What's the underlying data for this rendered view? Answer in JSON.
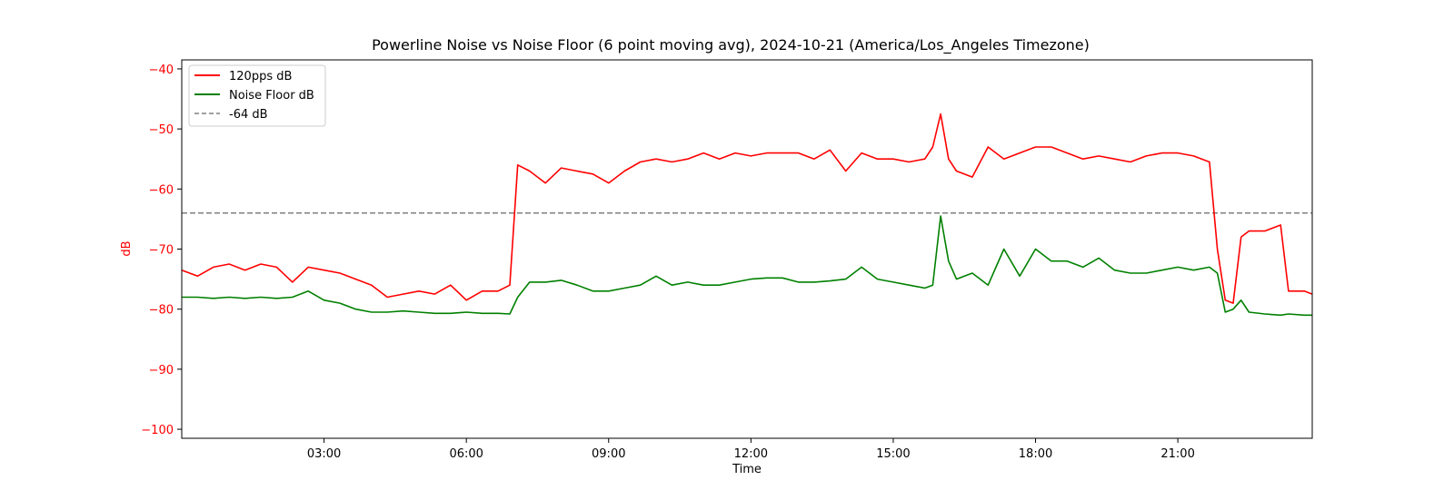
{
  "chart_data": {
    "type": "line",
    "title": "Powerline Noise vs Noise Floor (6 point moving avg), 2024-10-21 (America/Los_Angeles Timezone)",
    "xlabel": "Time",
    "ylabel": "dB",
    "xlim": [
      "00:00",
      "23:50"
    ],
    "ylim": [
      -101.5,
      -38.5
    ],
    "x_ticks": [
      "03:00",
      "06:00",
      "09:00",
      "12:00",
      "15:00",
      "18:00",
      "21:00"
    ],
    "y_ticks": [
      -40,
      -50,
      -60,
      -70,
      -80,
      -90,
      -100
    ],
    "grid": false,
    "legend_position": "top-left",
    "colors": {
      "pps": "#ff0000",
      "noise_floor": "#008000",
      "threshold": "#808080",
      "y_axis_text": "#ff0000"
    },
    "series": [
      {
        "name": "120pps dB",
        "color": "#ff0000",
        "x": [
          "00:00",
          "00:20",
          "00:40",
          "01:00",
          "01:20",
          "01:40",
          "02:00",
          "02:20",
          "02:40",
          "03:00",
          "03:20",
          "03:40",
          "04:00",
          "04:20",
          "04:40",
          "05:00",
          "05:20",
          "05:40",
          "06:00",
          "06:20",
          "06:40",
          "06:55",
          "07:05",
          "07:20",
          "07:40",
          "08:00",
          "08:20",
          "08:40",
          "09:00",
          "09:20",
          "09:40",
          "10:00",
          "10:20",
          "10:40",
          "11:00",
          "11:20",
          "11:40",
          "12:00",
          "12:20",
          "12:40",
          "13:00",
          "13:20",
          "13:40",
          "14:00",
          "14:20",
          "14:40",
          "15:00",
          "15:20",
          "15:40",
          "15:50",
          "16:00",
          "16:10",
          "16:20",
          "16:40",
          "17:00",
          "17:20",
          "17:40",
          "18:00",
          "18:20",
          "18:40",
          "19:00",
          "19:20",
          "19:40",
          "20:00",
          "20:20",
          "20:40",
          "21:00",
          "21:20",
          "21:40",
          "21:50",
          "22:00",
          "22:10",
          "22:20",
          "22:30",
          "22:50",
          "23:10",
          "23:20",
          "23:40",
          "23:50"
        ],
        "y": [
          -73.5,
          -74.5,
          -73,
          -72.5,
          -73.5,
          -72.5,
          -73,
          -75.5,
          -73,
          -73.5,
          -74,
          -75,
          -76,
          -78,
          -77.5,
          -77,
          -77.5,
          -76,
          -78.5,
          -77,
          -77,
          -76,
          -56,
          -57,
          -59,
          -56.5,
          -57,
          -57.5,
          -59,
          -57,
          -55.5,
          -55,
          -55.5,
          -55,
          -54,
          -55,
          -54,
          -54.5,
          -54,
          -54,
          -54,
          -55,
          -53.5,
          -57,
          -54,
          -55,
          -55,
          -55.5,
          -55,
          -53,
          -47.5,
          -55,
          -57,
          -58,
          -53,
          -55,
          -54,
          -53,
          -53,
          -54,
          -55,
          -54.5,
          -55,
          -55.5,
          -54.5,
          -54,
          -54,
          -54.5,
          -55.5,
          -70,
          -78.5,
          -79,
          -68,
          -67,
          -67,
          -66,
          -77,
          -77,
          -77.5
        ]
      },
      {
        "name": "Noise Floor dB",
        "color": "#008000",
        "x": [
          "00:00",
          "00:20",
          "00:40",
          "01:00",
          "01:20",
          "01:40",
          "02:00",
          "02:20",
          "02:40",
          "03:00",
          "03:20",
          "03:40",
          "04:00",
          "04:20",
          "04:40",
          "05:00",
          "05:20",
          "05:40",
          "06:00",
          "06:20",
          "06:40",
          "06:55",
          "07:05",
          "07:20",
          "07:40",
          "08:00",
          "08:20",
          "08:40",
          "09:00",
          "09:20",
          "09:40",
          "10:00",
          "10:20",
          "10:40",
          "11:00",
          "11:20",
          "11:40",
          "12:00",
          "12:20",
          "12:40",
          "13:00",
          "13:20",
          "13:40",
          "14:00",
          "14:20",
          "14:40",
          "15:00",
          "15:20",
          "15:40",
          "15:50",
          "16:00",
          "16:10",
          "16:20",
          "16:40",
          "17:00",
          "17:20",
          "17:40",
          "18:00",
          "18:20",
          "18:40",
          "19:00",
          "19:20",
          "19:40",
          "20:00",
          "20:20",
          "20:40",
          "21:00",
          "21:20",
          "21:40",
          "21:50",
          "22:00",
          "22:10",
          "22:20",
          "22:30",
          "22:50",
          "23:10",
          "23:20",
          "23:40",
          "23:50"
        ],
        "y": [
          -78,
          -78,
          -78.2,
          -78,
          -78.2,
          -78,
          -78.2,
          -78,
          -77,
          -78.5,
          -79,
          -80,
          -80.5,
          -80.5,
          -80.3,
          -80.5,
          -80.7,
          -80.7,
          -80.5,
          -80.7,
          -80.7,
          -80.8,
          -78,
          -75.5,
          -75.5,
          -75.2,
          -76,
          -77,
          -77,
          -76.5,
          -76,
          -74.5,
          -76,
          -75.5,
          -76,
          -76,
          -75.5,
          -75,
          -74.8,
          -74.8,
          -75.5,
          -75.5,
          -75.3,
          -75,
          -73,
          -75,
          -75.5,
          -76,
          -76.5,
          -76,
          -64.5,
          -72,
          -75,
          -74,
          -76,
          -70,
          -74.5,
          -70,
          -72,
          -72,
          -73,
          -71.5,
          -73.5,
          -74,
          -74,
          -73.5,
          -73,
          -73.5,
          -73,
          -74,
          -80.5,
          -80,
          -78.5,
          -80.5,
          -80.8,
          -81,
          -80.8,
          -81,
          -81
        ]
      }
    ],
    "reference_lines": [
      {
        "name": "-64 dB",
        "y": -64,
        "style": "dashed",
        "color": "#808080"
      }
    ]
  }
}
